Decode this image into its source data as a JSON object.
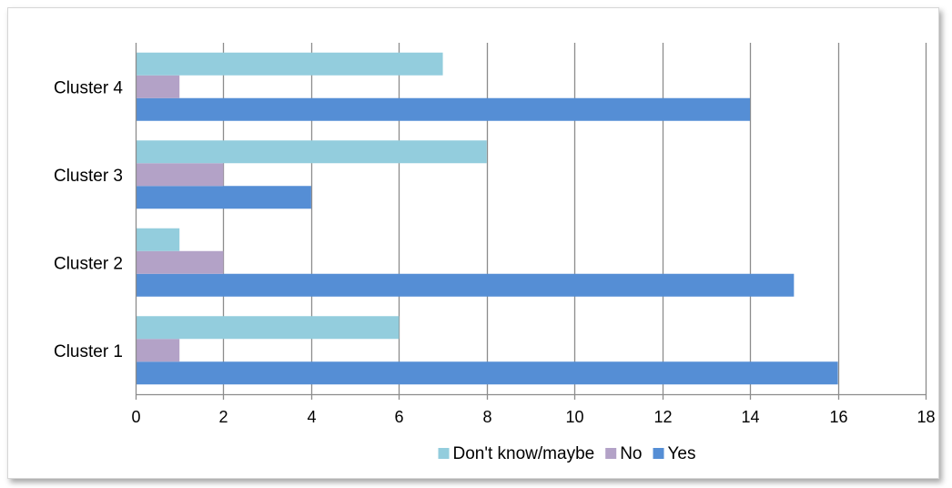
{
  "chart_data": {
    "type": "bar",
    "orientation": "horizontal",
    "categories": [
      "Cluster 1",
      "Cluster 2",
      "Cluster 3",
      "Cluster 4"
    ],
    "series": [
      {
        "name": "Yes",
        "color": "#558ed5",
        "values": [
          16,
          15,
          4,
          14
        ]
      },
      {
        "name": "No",
        "color": "#b3a2c7",
        "values": [
          1,
          2,
          2,
          1
        ]
      },
      {
        "name": "Don't know/maybe",
        "color": "#93cddd",
        "values": [
          6,
          1,
          8,
          7
        ]
      }
    ],
    "legend_order": [
      "Don't know/maybe",
      "No",
      "Yes"
    ],
    "xlim": [
      0,
      18
    ],
    "xticks": [
      0,
      2,
      4,
      6,
      8,
      10,
      12,
      14,
      16,
      18
    ],
    "grid": "vertical",
    "legend_position": "bottom",
    "title": "",
    "xlabel": "",
    "ylabel": ""
  }
}
